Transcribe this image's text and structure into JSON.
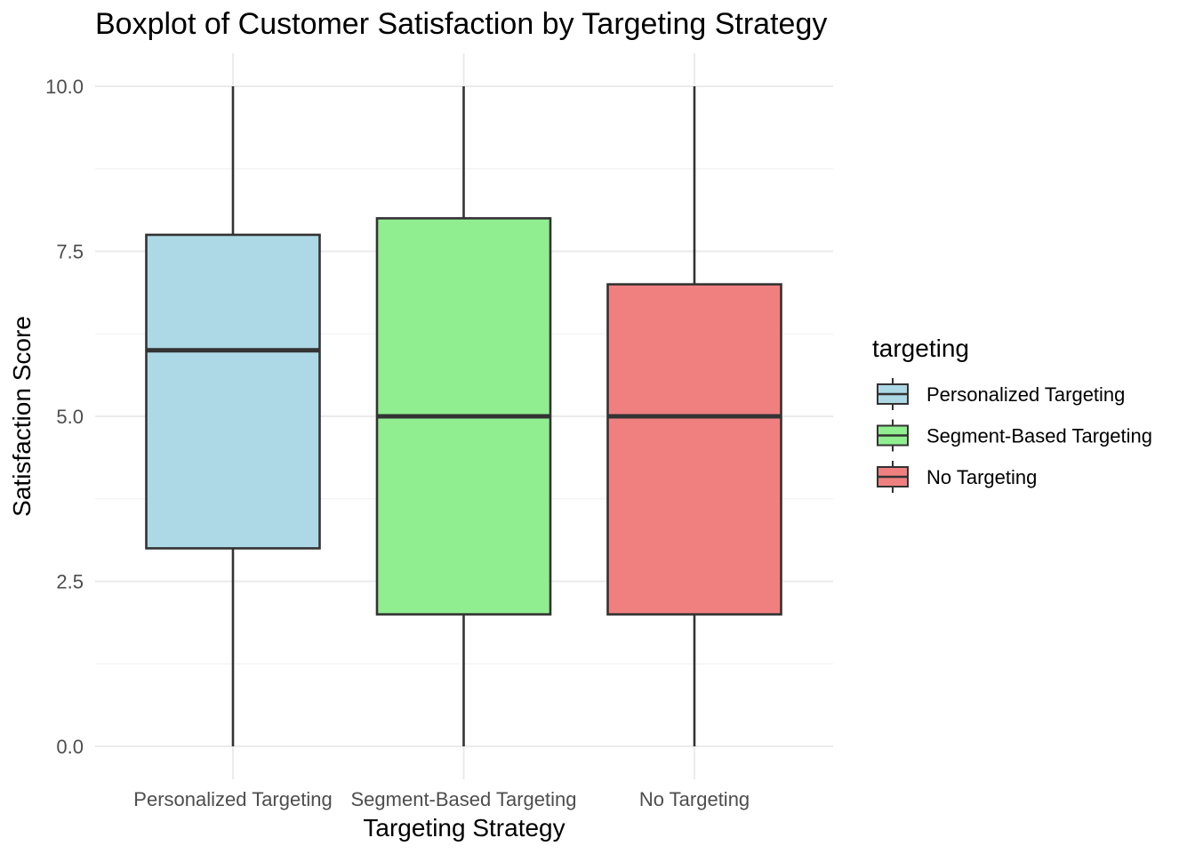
{
  "chart_data": {
    "type": "boxplot",
    "title": "Boxplot of Customer Satisfaction by Targeting Strategy",
    "xlabel": "Targeting Strategy",
    "ylabel": "Satisfaction Score",
    "ylim": [
      0,
      10
    ],
    "yticks": [
      0,
      2.5,
      5,
      7.5,
      10
    ],
    "ytick_labels": [
      "0.0",
      "2.5",
      "5.0",
      "7.5",
      "10.0"
    ],
    "grid": true,
    "legend": {
      "title": "targeting",
      "placement": "right"
    },
    "categories": [
      "Personalized Targeting",
      "Segment-Based Targeting",
      "No Targeting"
    ],
    "series": [
      {
        "name": "Personalized Targeting",
        "color": "#add8e6",
        "min": 0,
        "q1": 3,
        "median": 6,
        "q3": 7.75,
        "max": 10
      },
      {
        "name": "Segment-Based Targeting",
        "color": "#90ee90",
        "min": 0,
        "q1": 2,
        "median": 5,
        "q3": 8,
        "max": 10
      },
      {
        "name": "No Targeting",
        "color": "#f08080",
        "min": 0,
        "q1": 2,
        "median": 5,
        "q3": 7,
        "max": 10
      }
    ]
  }
}
